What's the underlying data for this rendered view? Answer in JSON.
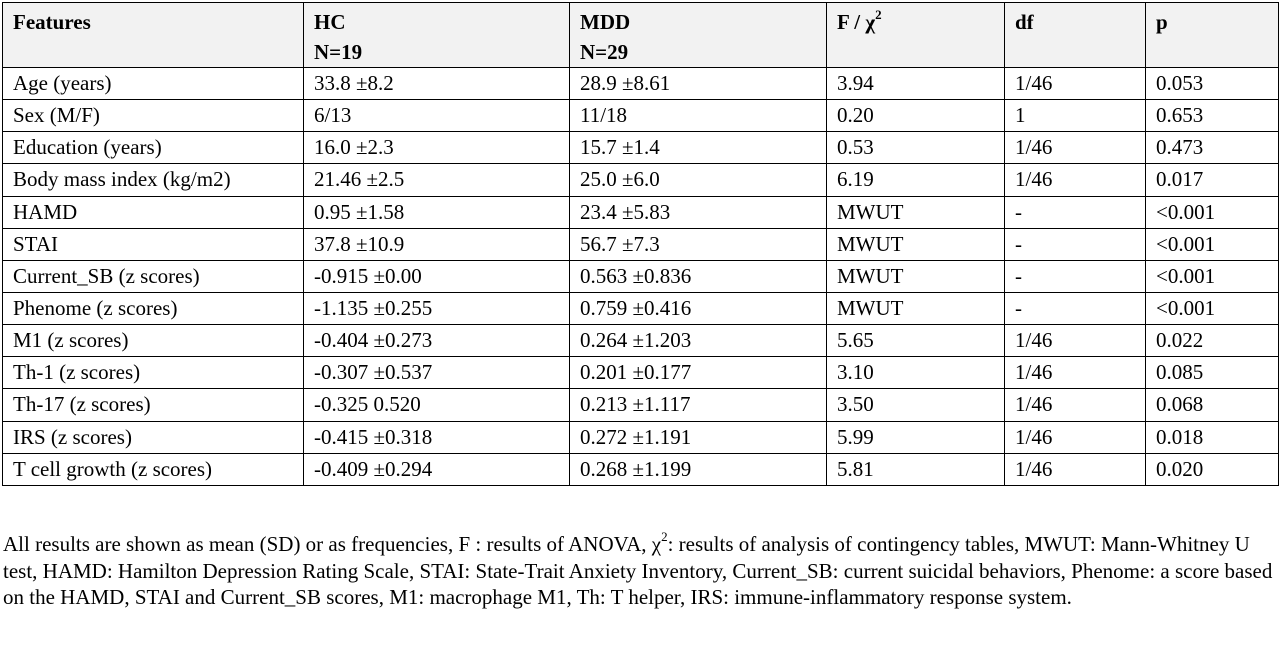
{
  "table": {
    "headers": [
      {
        "line1": "Features",
        "line2": "",
        "sup": ""
      },
      {
        "line1": "HC",
        "line2": "N=19",
        "sup": ""
      },
      {
        "line1": "MDD",
        "line2": "N=29",
        "sup": ""
      },
      {
        "line1": "F / χ",
        "line2": "",
        "sup": "2"
      },
      {
        "line1": "df",
        "line2": "",
        "sup": ""
      },
      {
        "line1": "p",
        "line2": "",
        "sup": ""
      }
    ],
    "rows": [
      [
        "Age (years)",
        "33.8 ±8.2",
        "28.9 ±8.61",
        "3.94",
        "1/46",
        "0.053"
      ],
      [
        "Sex (M/F)",
        "6/13",
        "11/18",
        "0.20",
        "1",
        "0.653"
      ],
      [
        "Education (years)",
        "16.0 ±2.3",
        "15.7 ±1.4",
        "0.53",
        "1/46",
        "0.473"
      ],
      [
        "Body mass index (kg/m2)",
        "21.46 ±2.5",
        "25.0 ±6.0",
        "6.19",
        "1/46",
        "0.017"
      ],
      [
        "HAMD",
        "0.95 ±1.58",
        "23.4 ±5.83",
        "MWUT",
        "-",
        "<0.001"
      ],
      [
        "STAI",
        "37.8 ±10.9",
        "56.7 ±7.3",
        "MWUT",
        "-",
        "<0.001"
      ],
      [
        "Current_SB (z scores)",
        "-0.915 ±0.00",
        "0.563 ±0.836",
        "MWUT",
        "-",
        "<0.001"
      ],
      [
        "Phenome (z scores)",
        "-1.135 ±0.255",
        "0.759 ±0.416",
        "MWUT",
        "-",
        "<0.001"
      ],
      [
        "M1 (z scores)",
        "-0.404 ±0.273",
        "0.264 ±1.203",
        "5.65",
        "1/46",
        "0.022"
      ],
      [
        "Th-1 (z scores)",
        "-0.307 ±0.537",
        "0.201 ±0.177",
        "3.10",
        "1/46",
        "0.085"
      ],
      [
        "Th-17 (z scores)",
        "-0.325 0.520",
        "0.213 ±1.117",
        "3.50",
        "1/46",
        "0.068"
      ],
      [
        "IRS (z scores)",
        "-0.415 ±0.318",
        "0.272 ±1.191",
        "5.99",
        "1/46",
        "0.018"
      ],
      [
        "T cell growth (z scores)",
        "-0.409 ±0.294",
        "0.268 ±1.199",
        "5.81",
        "1/46",
        "0.020"
      ]
    ]
  },
  "footnote": {
    "part1": "All results are shown as mean (SD) or as frequencies, F : results of ANOVA, χ",
    "sup": "2",
    "part2": ": results of analysis of contingency tables, MWUT: Mann-Whitney U test, HAMD: Hamilton Depression Rating Scale, STAI: State-Trait Anxiety Inventory, Current_SB: current suicidal behaviors, Phenome: a score based on the HAMD, STAI and Current_SB scores, M1: macrophage M1, Th: T helper, IRS: immune-inflammatory response system."
  }
}
